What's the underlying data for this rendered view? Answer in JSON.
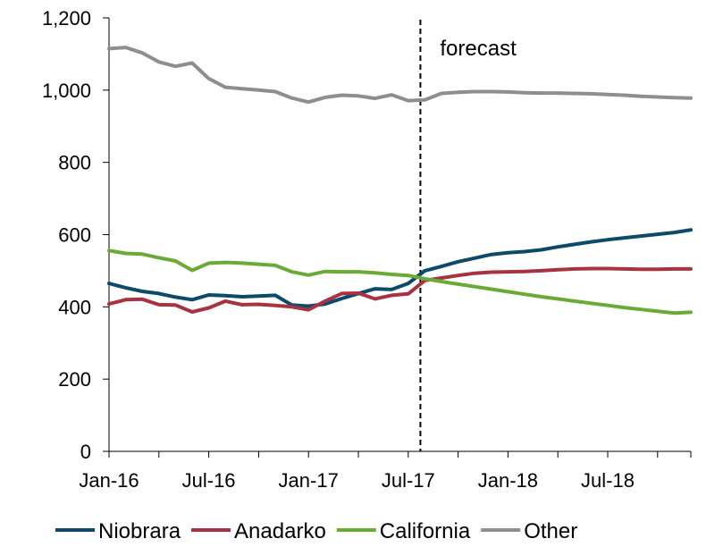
{
  "chart_data": {
    "type": "line",
    "title": "",
    "xlabel": "",
    "ylabel": "",
    "ylim": [
      0,
      1200
    ],
    "y_ticks": [
      0,
      200,
      400,
      600,
      800,
      1000,
      1200
    ],
    "y_tick_labels": [
      "0",
      "200",
      "400",
      "600",
      "800",
      "1,000",
      "1,200"
    ],
    "x_range_months": [
      0,
      35
    ],
    "x_ticks": [
      {
        "month": 0,
        "label": "Jan-16"
      },
      {
        "month": 6,
        "label": "Jul-16"
      },
      {
        "month": 12,
        "label": "Jan-17"
      },
      {
        "month": 18,
        "label": "Jul-17"
      },
      {
        "month": 24,
        "label": "Jan-18"
      },
      {
        "month": 30,
        "label": "Jul-18"
      }
    ],
    "grid": false,
    "forecast_marker": {
      "month": 19,
      "label": "forecast"
    },
    "legend_position": "bottom",
    "x": [
      "Jan-16",
      "Feb-16",
      "Mar-16",
      "Apr-16",
      "May-16",
      "Jun-16",
      "Jul-16",
      "Aug-16",
      "Sep-16",
      "Oct-16",
      "Nov-16",
      "Dec-16",
      "Jan-17",
      "Feb-17",
      "Mar-17",
      "Apr-17",
      "May-17",
      "Jun-17",
      "Jul-17",
      "Aug-17",
      "Sep-17",
      "Oct-17",
      "Nov-17",
      "Dec-17",
      "Jan-18",
      "Feb-18",
      "Mar-18",
      "Apr-18",
      "May-18",
      "Jun-18",
      "Jul-18",
      "Aug-18",
      "Sep-18",
      "Oct-18",
      "Nov-18",
      "Dec-18"
    ],
    "series": [
      {
        "name": "Niobrara",
        "color": "#0b4a6b",
        "values": [
          465,
          453,
          443,
          437,
          427,
          420,
          433,
          431,
          428,
          430,
          432,
          405,
          402,
          408,
          423,
          437,
          450,
          448,
          465,
          500,
          512,
          525,
          535,
          545,
          550,
          553,
          558,
          566,
          573,
          580,
          586,
          591,
          596,
          601,
          606,
          613
        ]
      },
      {
        "name": "Anadarko",
        "color": "#a83241",
        "values": [
          408,
          420,
          421,
          406,
          405,
          386,
          397,
          416,
          406,
          407,
          404,
          400,
          392,
          416,
          437,
          438,
          422,
          432,
          436,
          473,
          480,
          487,
          493,
          496,
          497,
          498,
          500,
          503,
          505,
          506,
          506,
          505,
          504,
          504,
          505,
          505
        ]
      },
      {
        "name": "California",
        "color": "#6aab35",
        "values": [
          556,
          548,
          546,
          536,
          527,
          501,
          521,
          523,
          521,
          518,
          515,
          497,
          488,
          498,
          497,
          497,
          494,
          490,
          487,
          478,
          470,
          463,
          456,
          449,
          442,
          435,
          428,
          422,
          416,
          410,
          404,
          398,
          393,
          388,
          383,
          385
        ]
      },
      {
        "name": "Other",
        "color": "#8e8e8e",
        "values": [
          1115,
          1118,
          1103,
          1078,
          1066,
          1075,
          1032,
          1008,
          1004,
          1000,
          996,
          978,
          967,
          980,
          986,
          984,
          977,
          987,
          971,
          973,
          991,
          994,
          996,
          996,
          995,
          993,
          992,
          992,
          991,
          990,
          988,
          986,
          983,
          981,
          979,
          978
        ]
      }
    ]
  }
}
